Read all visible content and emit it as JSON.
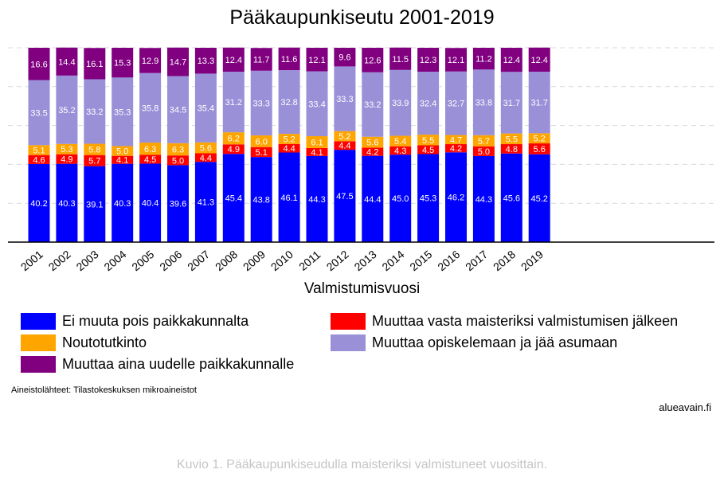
{
  "chart_data": {
    "type": "bar",
    "stacked": true,
    "title": "Pääkaupunkiseutu 2001-2019",
    "xlabel": "Valmistumisvuosi",
    "ylabel": "",
    "ylim": [
      0,
      100
    ],
    "grid": "horizontal-dashed",
    "legend_position": "bottom",
    "categories": [
      "2001",
      "2002",
      "2003",
      "2004",
      "2005",
      "2006",
      "2007",
      "2008",
      "2009",
      "2010",
      "2011",
      "2012",
      "2013",
      "2014",
      "2015",
      "2016",
      "2017",
      "2018",
      "2019"
    ],
    "series": [
      {
        "name": "Ei muuta pois paikkakunnalta",
        "color": "#0000ff",
        "label_color": "#ffffff",
        "values": [
          40.2,
          40.3,
          39.1,
          40.3,
          40.4,
          39.6,
          41.3,
          45.4,
          43.8,
          46.1,
          44.3,
          47.5,
          44.4,
          45.0,
          45.3,
          46.2,
          44.3,
          45.6,
          45.2
        ]
      },
      {
        "name": "Muuttaa vasta maisteriksi valmistumisen jälkeen",
        "color": "#ff0000",
        "label_color": "#ffffff",
        "values": [
          4.6,
          4.9,
          5.7,
          4.1,
          4.5,
          5.0,
          4.4,
          4.9,
          5.1,
          4.4,
          4.1,
          4.4,
          4.2,
          4.3,
          4.5,
          4.2,
          5.0,
          4.8,
          5.6
        ]
      },
      {
        "name": "Noutotutkinto",
        "color": "#ffa500",
        "label_color": "#ffffff",
        "values": [
          5.1,
          5.3,
          5.8,
          5.0,
          6.3,
          6.3,
          5.6,
          6.2,
          6.0,
          5.2,
          6.1,
          5.2,
          5.6,
          5.4,
          5.5,
          4.7,
          5.7,
          5.5,
          5.2
        ]
      },
      {
        "name": "Muuttaa opiskelemaan ja jää asumaan",
        "color": "#9990d8",
        "label_color": "#ffffff",
        "values": [
          33.5,
          35.2,
          33.2,
          35.3,
          35.8,
          34.5,
          35.4,
          31.2,
          33.3,
          32.8,
          33.4,
          33.3,
          33.2,
          33.9,
          32.4,
          32.7,
          33.8,
          31.7,
          31.7
        ]
      },
      {
        "name": "Muuttaa aina uudelle paikkakunnalle",
        "color": "#800080",
        "label_color": "#ffffff",
        "values": [
          16.6,
          14.4,
          16.1,
          15.3,
          12.9,
          14.7,
          13.3,
          12.4,
          11.7,
          11.6,
          12.1,
          9.6,
          12.6,
          11.5,
          12.3,
          12.1,
          11.2,
          12.4,
          12.4
        ]
      }
    ]
  },
  "legend": {
    "items": [
      {
        "label": "Ei muuta pois paikkakunnalta",
        "color": "#0000ff"
      },
      {
        "label": "Muuttaa vasta maisteriksi valmistumisen jälkeen",
        "color": "#ff0000"
      },
      {
        "label": "Noutotutkinto",
        "color": "#ffa500"
      },
      {
        "label": "Muuttaa opiskelemaan ja jää asumaan",
        "color": "#9990d8"
      },
      {
        "label": "Muuttaa aina uudelle paikkakunnalle",
        "color": "#800080"
      }
    ]
  },
  "footer": {
    "source": "Aineistolähteet: Tilastokeskuksen mikroaineistot",
    "brand": "alueavain.fi",
    "caption": "Kuvio 1. Pääkaupunkiseudulla maisteriksi valmistuneet vuosittain."
  }
}
